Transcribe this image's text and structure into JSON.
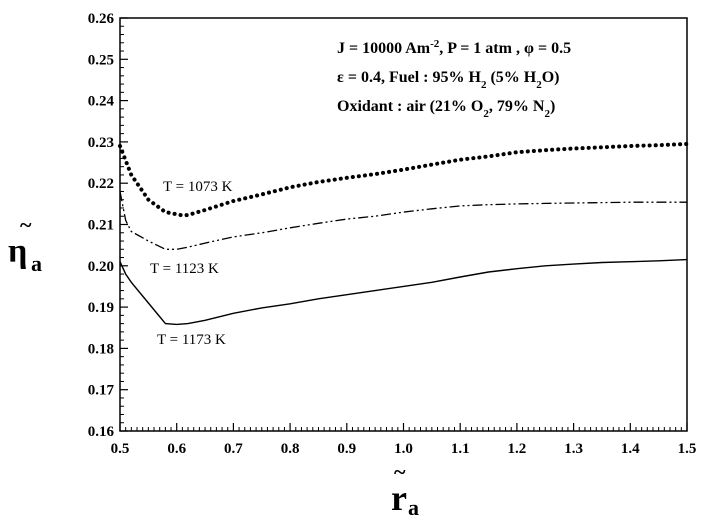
{
  "chart_data": {
    "type": "line",
    "title": "",
    "xlim": [
      0.5,
      1.5
    ],
    "ylim": [
      0.16,
      0.26
    ],
    "x_major_ticks": [
      0.5,
      0.6,
      0.7,
      0.8,
      0.9,
      1.0,
      1.1,
      1.2,
      1.3,
      1.4,
      1.5
    ],
    "y_major_ticks": [
      0.16,
      0.17,
      0.18,
      0.19,
      0.2,
      0.21,
      0.22,
      0.23,
      0.24,
      0.25,
      0.26
    ],
    "x_tick_labels": [
      "0.5",
      "0.6",
      "0.7",
      "0.8",
      "0.9",
      "1.0",
      "1.1",
      "1.2",
      "1.3",
      "1.4",
      "1.5"
    ],
    "y_tick_labels": [
      "0.16",
      "0.17",
      "0.18",
      "0.19",
      "0.20",
      "0.21",
      "0.22",
      "0.23",
      "0.24",
      "0.25",
      "0.26"
    ],
    "x_axis_label": {
      "base": "r",
      "tilde": "~",
      "subscript": "a"
    },
    "y_axis_label": {
      "base": "η",
      "tilde": "~",
      "subscript": "a"
    },
    "annotations": {
      "line1": {
        "p1": "J = 10000 Am",
        "sup1": "-2",
        "p2": ", P = 1 atm , φ = 0.5"
      },
      "line2": {
        "p1": "ε = 0.4, Fuel : 95% H",
        "sub1": "2",
        "p2": " (5% H",
        "sub2": "2",
        "p3": "O)"
      },
      "line3": {
        "p1": "Oxidant : air (21% O",
        "sub1": "2",
        "p2": ", 79% N",
        "sub2": "2",
        "p3": ")"
      }
    },
    "series": [
      {
        "name": "T = 1073 K",
        "style": "dotted",
        "x": [
          0.5,
          0.52,
          0.55,
          0.58,
          0.61,
          0.62,
          0.65,
          0.7,
          0.75,
          0.8,
          0.85,
          0.9,
          0.95,
          1.0,
          1.05,
          1.1,
          1.15,
          1.2,
          1.25,
          1.3,
          1.35,
          1.4,
          1.45,
          1.5
        ],
        "y": [
          0.229,
          0.222,
          0.216,
          0.213,
          0.2122,
          0.2123,
          0.2135,
          0.2157,
          0.2173,
          0.219,
          0.2203,
          0.2213,
          0.2222,
          0.2233,
          0.2245,
          0.2257,
          0.2265,
          0.2275,
          0.228,
          0.2284,
          0.2287,
          0.229,
          0.2292,
          0.2295
        ]
      },
      {
        "name": "T = 1123 K",
        "style": "dash-dot-dot",
        "x": [
          0.5,
          0.51,
          0.52,
          0.55,
          0.58,
          0.6,
          0.62,
          0.65,
          0.7,
          0.75,
          0.8,
          0.85,
          0.9,
          0.95,
          1.0,
          1.05,
          1.1,
          1.15,
          1.2,
          1.25,
          1.3,
          1.35,
          1.4,
          1.45,
          1.5
        ],
        "y": [
          0.218,
          0.211,
          0.2083,
          0.206,
          0.204,
          0.204,
          0.2045,
          0.2055,
          0.207,
          0.208,
          0.2092,
          0.2103,
          0.2113,
          0.212,
          0.213,
          0.2138,
          0.2145,
          0.2148,
          0.215,
          0.2151,
          0.2152,
          0.2153,
          0.2154,
          0.2154,
          0.2154
        ]
      },
      {
        "name": "T = 1173 K",
        "style": "solid",
        "x": [
          0.5,
          0.51,
          0.52,
          0.55,
          0.58,
          0.6,
          0.62,
          0.65,
          0.7,
          0.75,
          0.8,
          0.85,
          0.9,
          0.95,
          1.0,
          1.05,
          1.1,
          1.15,
          1.2,
          1.25,
          1.3,
          1.35,
          1.4,
          1.45,
          1.5
        ],
        "y": [
          0.201,
          0.198,
          0.196,
          0.191,
          0.186,
          0.1858,
          0.186,
          0.1868,
          0.1885,
          0.1898,
          0.1908,
          0.192,
          0.193,
          0.194,
          0.195,
          0.196,
          0.1973,
          0.1985,
          0.1993,
          0.2,
          0.2004,
          0.2008,
          0.201,
          0.2012,
          0.2015
        ]
      }
    ]
  }
}
